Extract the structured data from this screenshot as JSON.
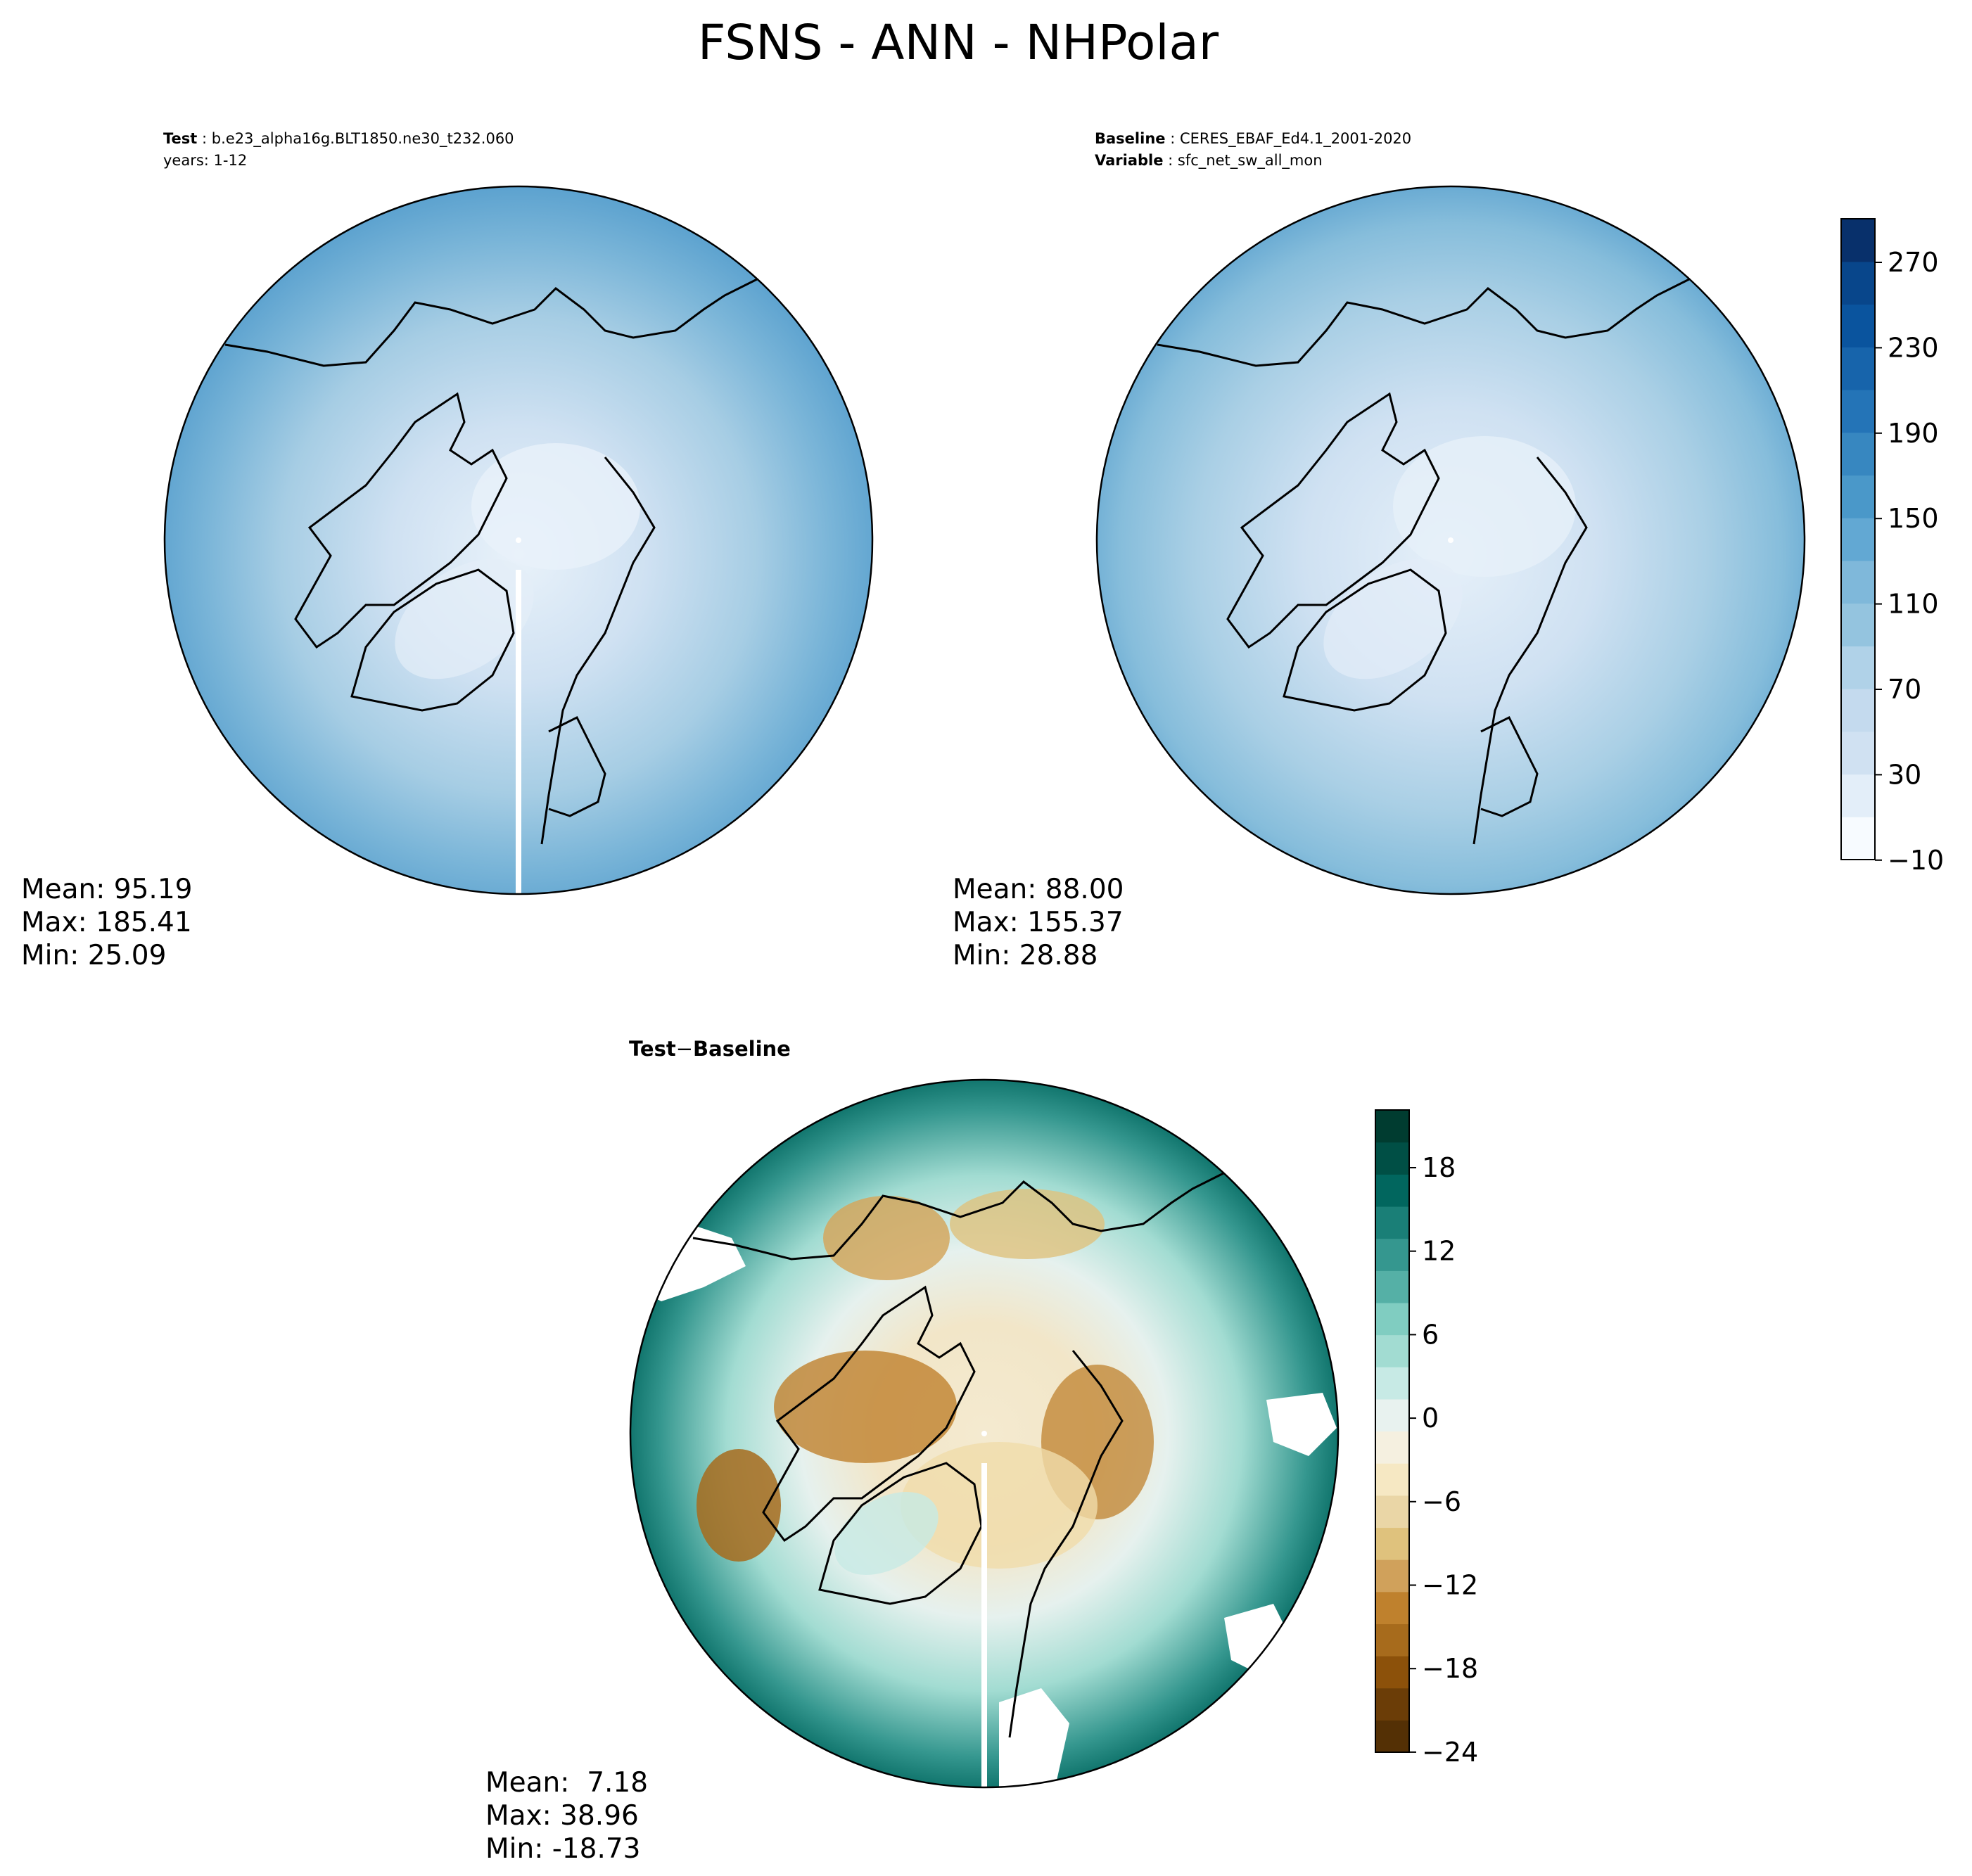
{
  "figure": {
    "title": "FSNS - ANN - NHPolar"
  },
  "panels": [
    {
      "id": "test",
      "header_line1_label": "Test",
      "header_line1_value": "b.e23_alpha16g.BLT1850.ne30_t232.060",
      "header_line2_label": "",
      "header_line2_value": "years: 1-12",
      "stats": {
        "mean": "Mean: 95.19",
        "max": "Max: 185.41",
        "min": "Min: 25.09"
      },
      "colormap": "Blues"
    },
    {
      "id": "baseline",
      "header_line1_label": "Baseline",
      "header_line1_value": "CERES_EBAF_Ed4.1_2001-2020",
      "header_line2_label": "Variable",
      "header_line2_value": "sfc_net_sw_all_mon",
      "stats": {
        "mean": "Mean: 88.00",
        "max": "Max: 155.37",
        "min": "Min: 28.88"
      },
      "colormap": "Blues"
    },
    {
      "id": "diff",
      "header_line1_label": "Test",
      "header_line1_sep": "−",
      "header_line1_value": "Baseline",
      "stats": {
        "mean": "Mean:  7.18",
        "max": "Max: 38.96",
        "min": "Min: -18.73"
      },
      "colormap": "BrBG"
    }
  ],
  "colorbars": [
    {
      "for": "test-and-baseline",
      "min": -10,
      "max": 290,
      "tick_labels": [
        "270",
        "230",
        "190",
        "150",
        "110",
        "70",
        "30",
        "−10"
      ],
      "colors": [
        "#f7fbff",
        "#e3eef9",
        "#d0e1f2",
        "#c4daee",
        "#b0d2e8",
        "#94c4df",
        "#7fb8da",
        "#62a8d3",
        "#4a98c9",
        "#3787c0",
        "#2474b7",
        "#1764ab",
        "#0a549e",
        "#08468b",
        "#08306b"
      ]
    },
    {
      "for": "difference",
      "min": -24,
      "max": 21,
      "tick_labels": [
        "18",
        "12",
        "6",
        "0",
        "−6",
        "−12",
        "−18",
        "−24"
      ],
      "colors": [
        "#543005",
        "#6b3d07",
        "#8c510a",
        "#a76b1c",
        "#bf812d",
        "#d0a15b",
        "#dfc27d",
        "#ead6a6",
        "#f6e8c3",
        "#f5f0e0",
        "#e8f2ef",
        "#c7eae5",
        "#a2dcd2",
        "#80cdc1",
        "#55b0a6",
        "#35978f",
        "#1a7f77",
        "#01665e",
        "#004f45",
        "#003c30"
      ]
    }
  ]
}
